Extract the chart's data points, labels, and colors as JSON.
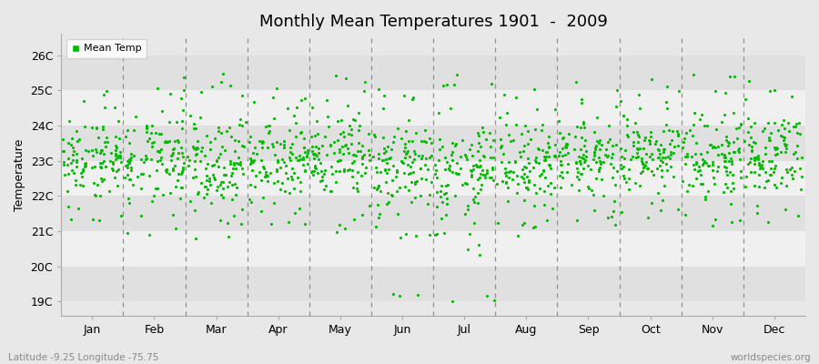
{
  "title": "Monthly Mean Temperatures 1901  -  2009",
  "ylabel": "Temperature",
  "xlabel_labels": [
    "Jan",
    "Feb",
    "Mar",
    "Apr",
    "May",
    "Jun",
    "Jul",
    "Aug",
    "Sep",
    "Oct",
    "Nov",
    "Dec"
  ],
  "ytick_labels": [
    "19C",
    "20C",
    "21C",
    "22C",
    "23C",
    "24C",
    "25C",
    "26C"
  ],
  "ytick_values": [
    19,
    20,
    21,
    22,
    23,
    24,
    25,
    26
  ],
  "ylim": [
    18.6,
    26.6
  ],
  "xlim": [
    0,
    12
  ],
  "dot_color": "#00bb00",
  "bg_color": "#e8e8e8",
  "band_light": "#f0f0f0",
  "band_dark": "#e0e0e0",
  "title_fontsize": 13,
  "axis_fontsize": 9,
  "subtitle": "Latitude -9.25 Longitude -75.75",
  "watermark": "worldspecies.org",
  "legend_label": "Mean Temp",
  "years": 109,
  "seed": 42,
  "monthly_means": [
    23.1,
    23.0,
    22.95,
    23.1,
    23.05,
    22.85,
    22.75,
    22.9,
    23.05,
    23.2,
    23.1,
    23.15
  ],
  "monthly_stds": [
    0.55,
    0.6,
    0.65,
    0.55,
    0.6,
    0.65,
    0.7,
    0.6,
    0.55,
    0.55,
    0.6,
    0.55
  ]
}
